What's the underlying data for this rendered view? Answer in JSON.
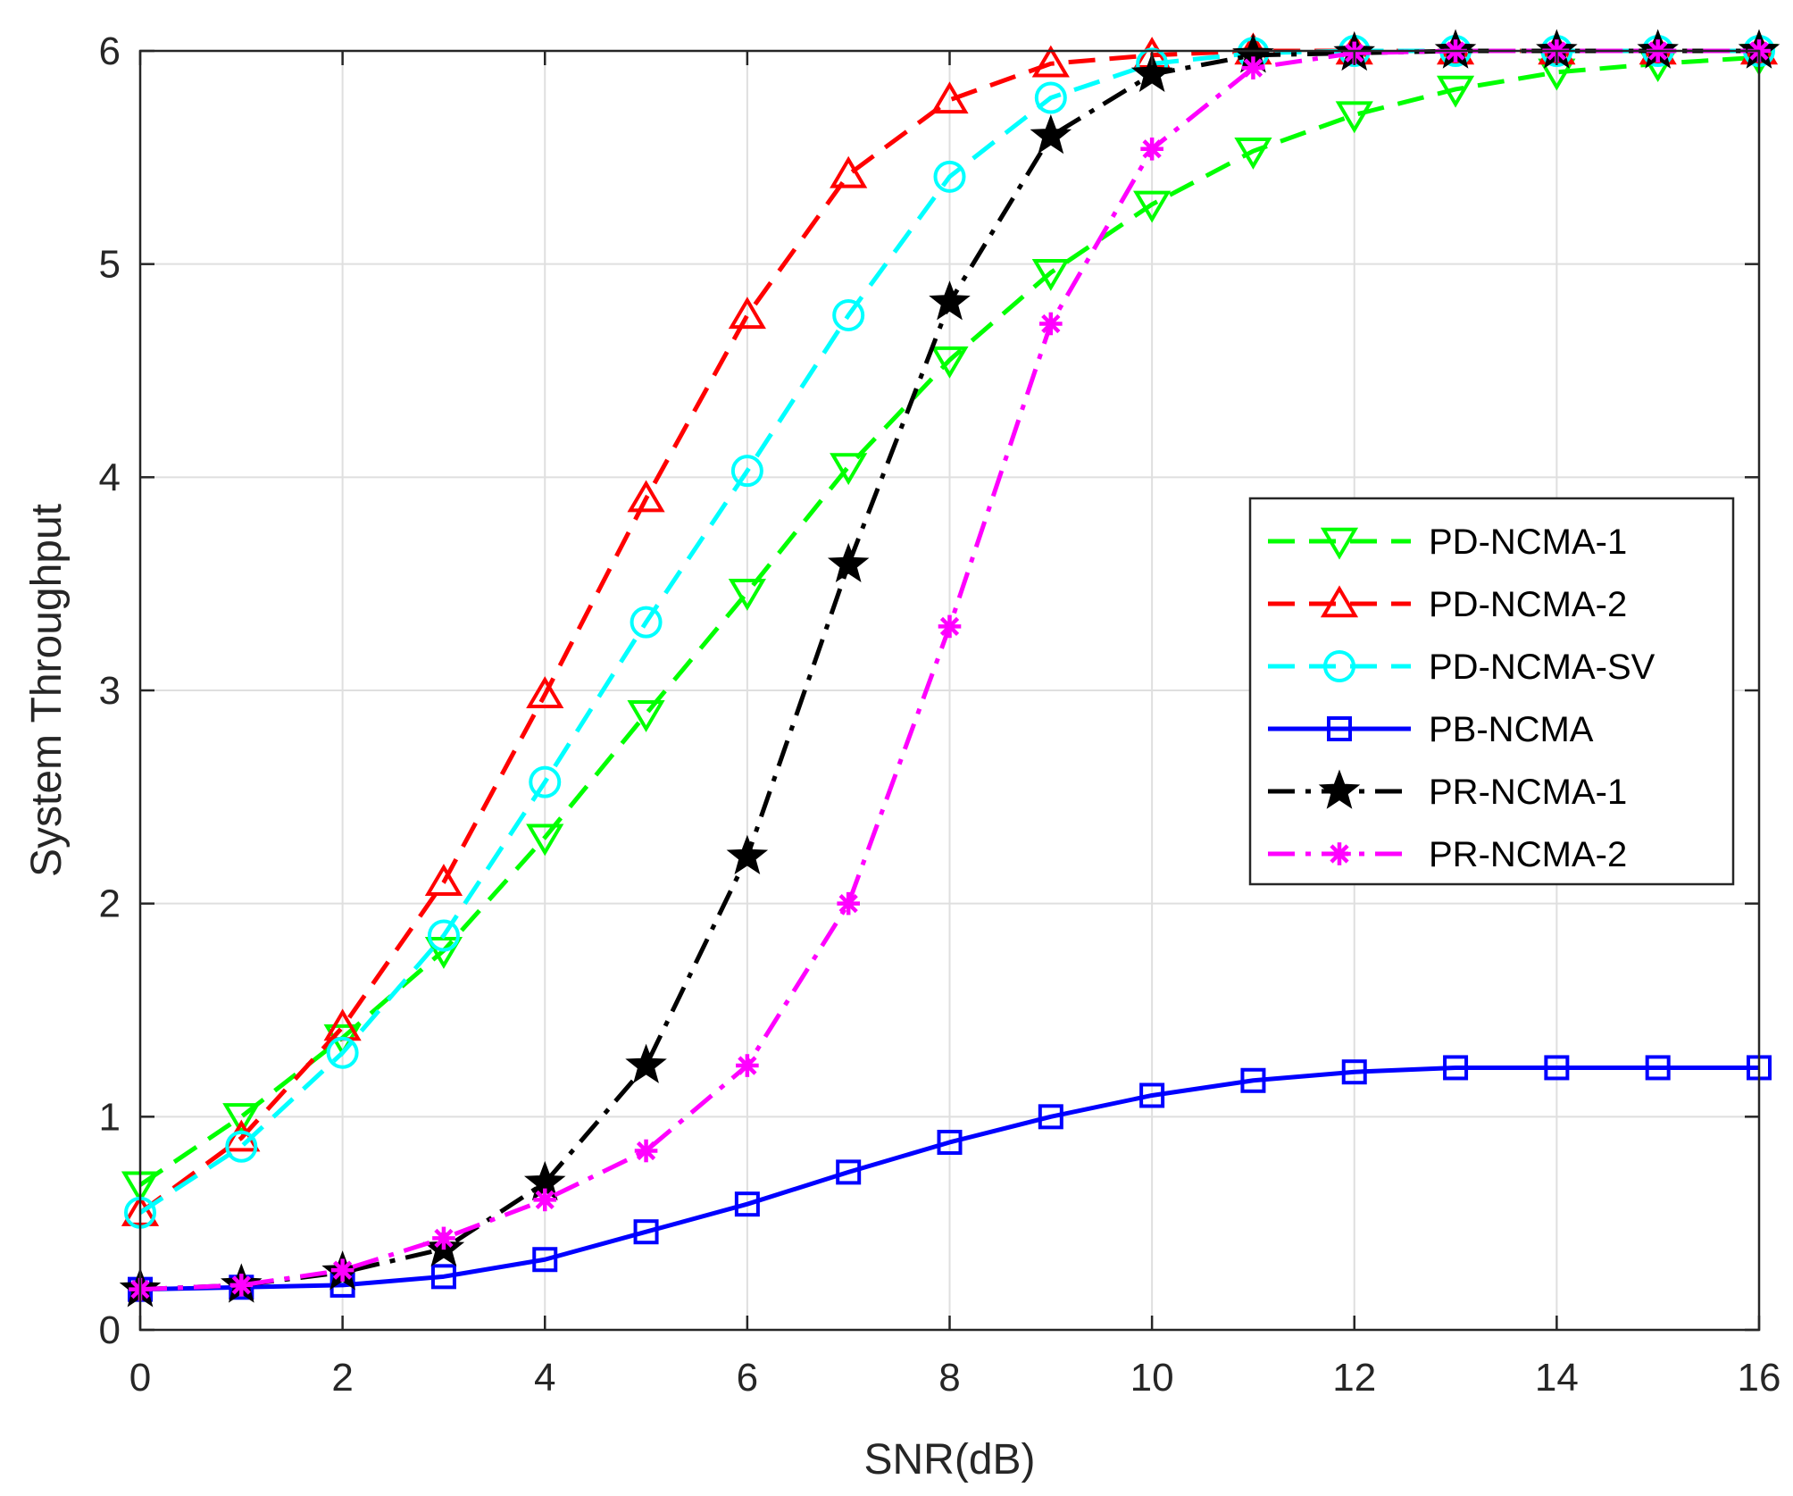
{
  "chart_data": {
    "type": "line",
    "title": "",
    "xlabel": "SNR(dB)",
    "ylabel": "System Throughput",
    "xlim": [
      0,
      16
    ],
    "ylim": [
      0,
      6
    ],
    "xticks": [
      0,
      2,
      4,
      6,
      8,
      10,
      12,
      14,
      16
    ],
    "yticks": [
      0,
      1,
      2,
      3,
      4,
      5,
      6
    ],
    "grid": true,
    "legend_position": "right",
    "x": [
      0,
      1,
      2,
      3,
      4,
      5,
      6,
      7,
      8,
      9,
      10,
      11,
      12,
      13,
      14,
      15,
      16
    ],
    "series": [
      {
        "name": "PD-NCMA-1",
        "color": "#00ff00",
        "line_style": "dashed",
        "marker": "triangle-down",
        "values": [
          0.68,
          1.0,
          1.37,
          1.78,
          2.31,
          2.89,
          3.46,
          4.05,
          4.55,
          4.96,
          5.28,
          5.53,
          5.7,
          5.82,
          5.9,
          5.94,
          5.97
        ]
      },
      {
        "name": "PD-NCMA-2",
        "color": "#ff0000",
        "line_style": "dashed",
        "marker": "triangle-up",
        "values": [
          0.55,
          0.9,
          1.42,
          2.1,
          2.98,
          3.9,
          4.76,
          5.42,
          5.77,
          5.94,
          5.98,
          6.0,
          6.0,
          6.0,
          6.0,
          6.0,
          6.0
        ]
      },
      {
        "name": "PD-NCMA-SV",
        "color": "#00ffff",
        "line_style": "dashed",
        "marker": "circle",
        "values": [
          0.55,
          0.86,
          1.3,
          1.85,
          2.57,
          3.32,
          4.03,
          4.76,
          5.41,
          5.78,
          5.94,
          5.99,
          6.0,
          6.0,
          6.0,
          6.0,
          6.0
        ]
      },
      {
        "name": "PB-NCMA",
        "color": "#0000ff",
        "line_style": "solid",
        "marker": "square",
        "values": [
          0.19,
          0.2,
          0.21,
          0.25,
          0.33,
          0.46,
          0.59,
          0.74,
          0.88,
          1.0,
          1.1,
          1.17,
          1.21,
          1.23,
          1.23,
          1.23,
          1.23
        ]
      },
      {
        "name": "PR-NCMA-1",
        "color": "#000000",
        "line_style": "dashdot",
        "marker": "star",
        "values": [
          0.19,
          0.21,
          0.27,
          0.38,
          0.69,
          1.24,
          2.22,
          3.59,
          4.82,
          5.6,
          5.89,
          5.98,
          5.99,
          6.0,
          6.0,
          6.0,
          6.0
        ]
      },
      {
        "name": "PR-NCMA-2",
        "color": "#ff00ff",
        "line_style": "dashdot",
        "marker": "asterisk",
        "values": [
          0.19,
          0.21,
          0.28,
          0.43,
          0.61,
          0.84,
          1.24,
          2.0,
          3.3,
          4.72,
          5.54,
          5.92,
          5.99,
          6.0,
          6.0,
          6.0,
          6.0
        ]
      }
    ]
  }
}
